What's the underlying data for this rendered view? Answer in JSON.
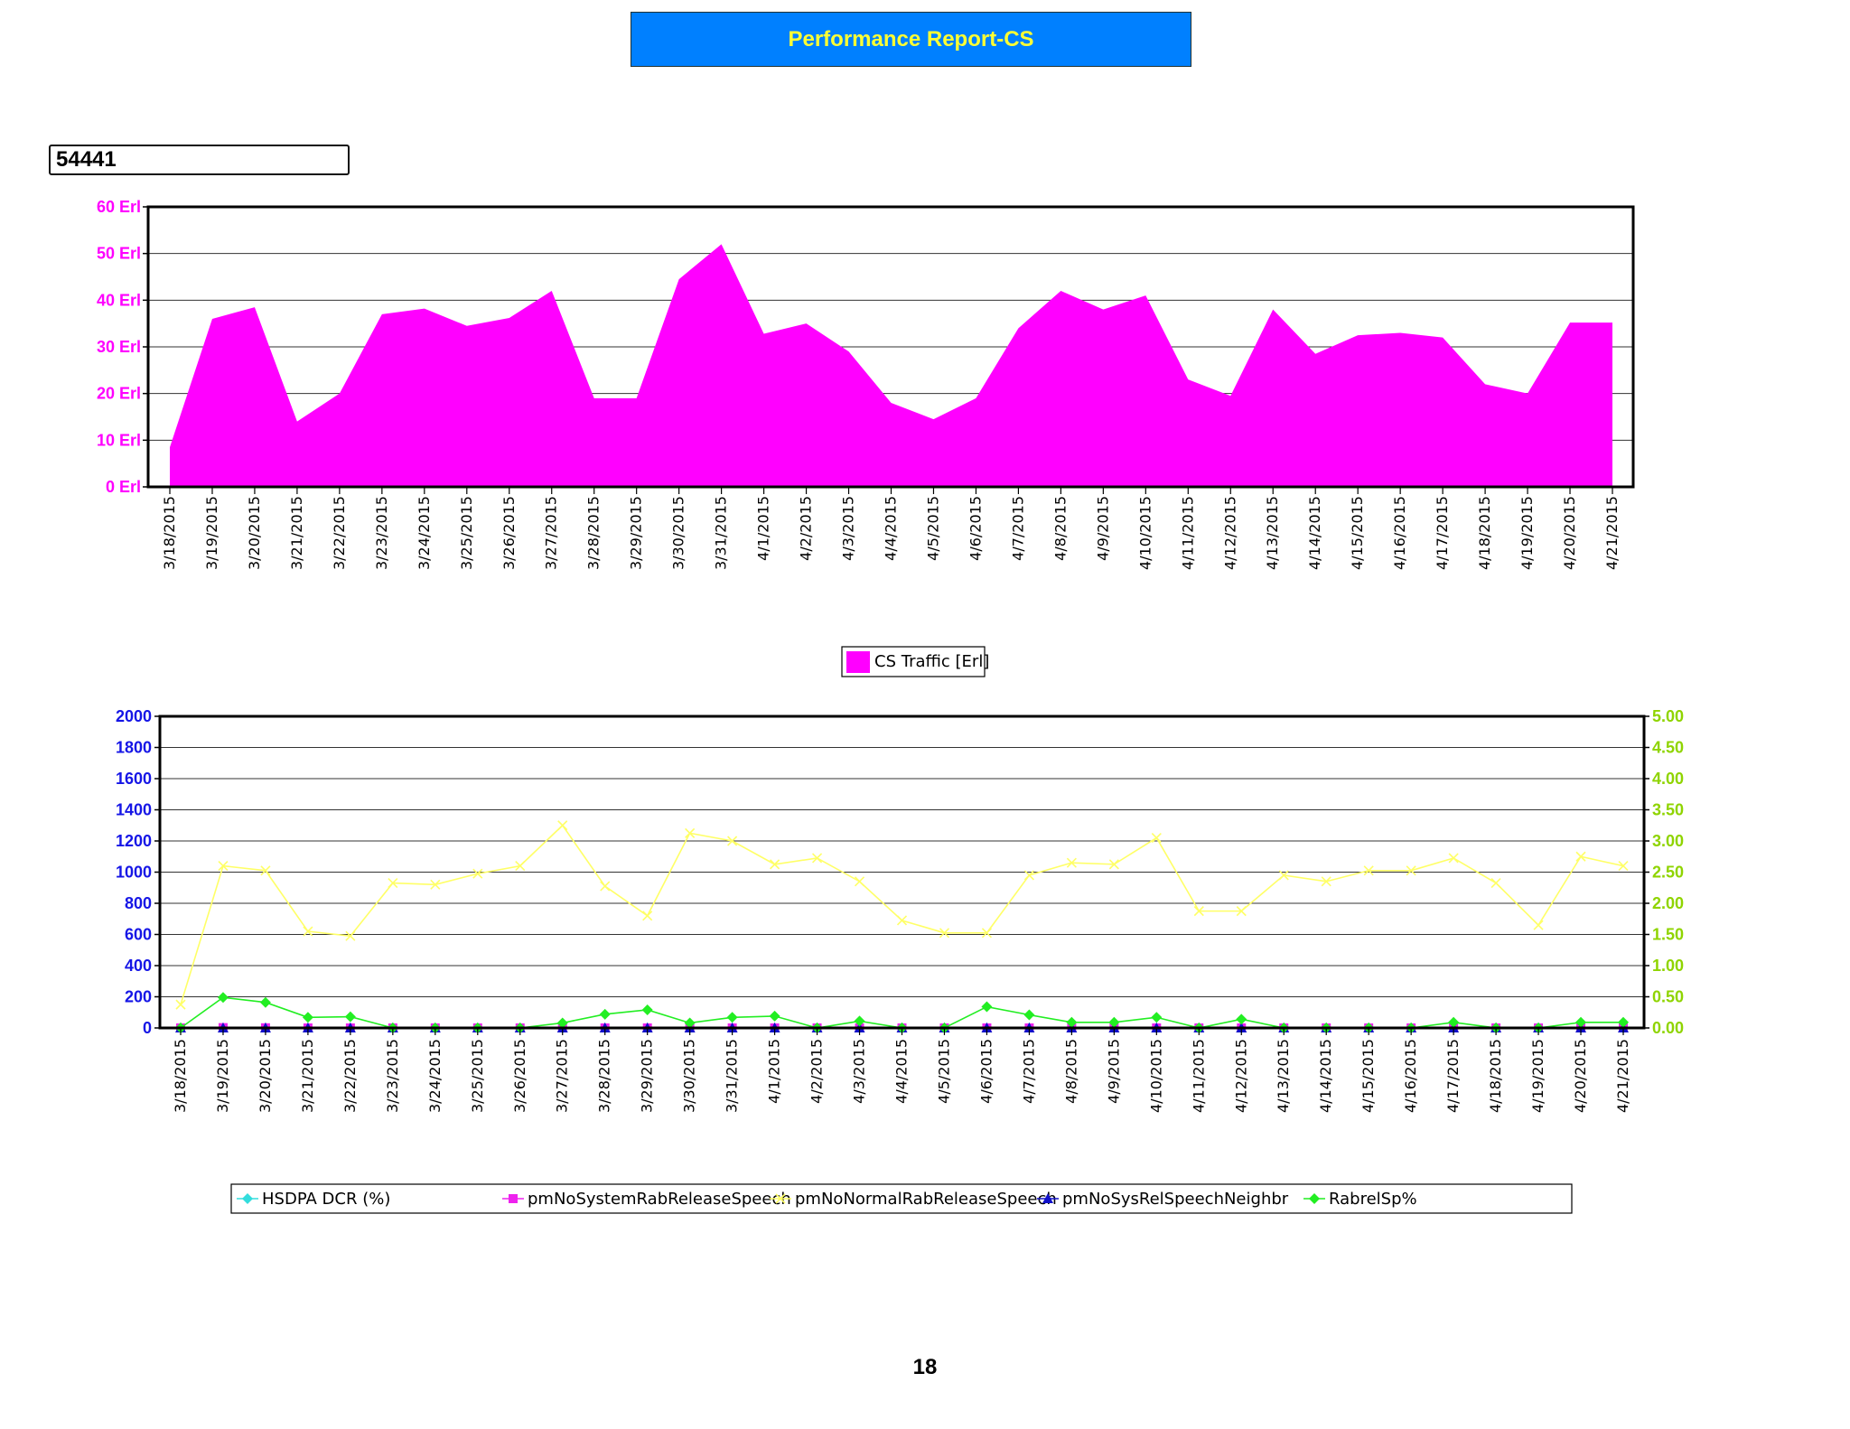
{
  "page": {
    "title": "Performance Report-CS",
    "cell_id": "54441",
    "page_number": "18"
  },
  "colors": {
    "title_bg": "#0080ff",
    "title_text": "#ffff33",
    "traffic": "#ff00ff",
    "left_axis": "#1515e6",
    "right_axis": "#8fd400",
    "hsdpa_dcr": "#33dddd",
    "system_rab": "#ee22ee",
    "normal_rab": "#ffff66",
    "sysrel_neighbr": "#1010c8",
    "rabrelsp": "#22ee22"
  },
  "chart_data": [
    {
      "type": "area",
      "categories": [
        "3/18/2015",
        "3/19/2015",
        "3/20/2015",
        "3/21/2015",
        "3/22/2015",
        "3/23/2015",
        "3/24/2015",
        "3/25/2015",
        "3/26/2015",
        "3/27/2015",
        "3/28/2015",
        "3/29/2015",
        "3/30/2015",
        "3/31/2015",
        "4/1/2015",
        "4/2/2015",
        "4/3/2015",
        "4/4/2015",
        "4/5/2015",
        "4/6/2015",
        "4/7/2015",
        "4/8/2015",
        "4/9/2015",
        "4/10/2015",
        "4/11/2015",
        "4/12/2015",
        "4/13/2015",
        "4/14/2015",
        "4/15/2015",
        "4/16/2015",
        "4/17/2015",
        "4/18/2015",
        "4/19/2015",
        "4/20/2015",
        "4/21/2015"
      ],
      "series": [
        {
          "name": "CS Traffic [Erl]",
          "values": [
            8.5,
            36,
            38.5,
            14,
            20,
            37,
            38.2,
            34.5,
            36.2,
            42,
            19,
            19,
            44.5,
            52,
            32.8,
            35,
            29,
            18,
            14.5,
            19,
            34,
            42,
            38,
            41,
            23,
            19.5,
            38,
            28.5,
            32.5,
            33,
            32,
            22,
            20,
            35.2,
            35.2
          ]
        }
      ],
      "y_ticks": [
        "0 Erl",
        "10 Erl",
        "20 Erl",
        "30 Erl",
        "40 Erl",
        "50 Erl",
        "60 Erl"
      ],
      "ylim": [
        0,
        60
      ],
      "grid": true,
      "legend_position": "bottom"
    },
    {
      "type": "line",
      "categories": [
        "3/18/2015",
        "3/19/2015",
        "3/20/2015",
        "3/21/2015",
        "3/22/2015",
        "3/23/2015",
        "3/24/2015",
        "3/25/2015",
        "3/26/2015",
        "3/27/2015",
        "3/28/2015",
        "3/29/2015",
        "3/30/2015",
        "3/31/2015",
        "4/1/2015",
        "4/2/2015",
        "4/3/2015",
        "4/4/2015",
        "4/5/2015",
        "4/6/2015",
        "4/7/2015",
        "4/8/2015",
        "4/9/2015",
        "4/10/2015",
        "4/11/2015",
        "4/12/2015",
        "4/13/2015",
        "4/14/2015",
        "4/15/2015",
        "4/16/2015",
        "4/17/2015",
        "4/18/2015",
        "4/19/2015",
        "4/20/2015",
        "4/21/2015"
      ],
      "series": [
        {
          "name": "HSDPA DCR (%)",
          "axis": "right",
          "marker": "diamond",
          "values": [
            0,
            0,
            0,
            0,
            0,
            0,
            0,
            0,
            0,
            0,
            0,
            0,
            0,
            0,
            0,
            0,
            0,
            0,
            0,
            0,
            0,
            0,
            0,
            0,
            0,
            0,
            0,
            0,
            0,
            0,
            0,
            0,
            0,
            0,
            0
          ]
        },
        {
          "name": "pmNoSystemRabReleaseSpeech",
          "axis": "left",
          "marker": "square",
          "values": [
            0,
            2,
            1,
            0,
            0,
            0,
            0,
            0,
            0,
            0,
            0,
            0,
            0,
            0,
            0,
            0,
            0,
            0,
            0,
            0,
            0,
            0,
            0,
            0,
            0,
            0,
            0,
            0,
            0,
            0,
            0,
            0,
            0,
            0,
            0
          ]
        },
        {
          "name": "pmNoNormalRabReleaseSpeech",
          "axis": "left",
          "marker": "x",
          "values": [
            150,
            1040,
            1010,
            620,
            590,
            930,
            920,
            990,
            1040,
            1300,
            910,
            720,
            1250,
            1200,
            1050,
            1090,
            940,
            690,
            610,
            610,
            980,
            1060,
            1050,
            1220,
            750,
            750,
            980,
            940,
            1010,
            1010,
            1090,
            930,
            660,
            1100,
            1040
          ]
        },
        {
          "name": "pmNoSysRelSpeechNeighbr",
          "axis": "left",
          "marker": "triangle",
          "values": [
            0,
            0,
            0,
            0,
            0,
            0,
            0,
            0,
            0,
            0,
            0,
            0,
            0,
            0,
            0,
            0,
            0,
            0,
            0,
            0,
            0,
            0,
            0,
            0,
            0,
            0,
            0,
            0,
            0,
            0,
            0,
            0,
            0,
            0,
            0
          ]
        },
        {
          "name": "RabrelSp%",
          "axis": "right",
          "marker": "diamond",
          "values": [
            0,
            0.49,
            0.41,
            0.17,
            0.18,
            0,
            0,
            0,
            0,
            0.08,
            0.22,
            0.29,
            0.08,
            0.17,
            0.19,
            0,
            0.11,
            0,
            0,
            0.34,
            0.21,
            0.09,
            0.09,
            0.17,
            0,
            0.14,
            0,
            0,
            0,
            0,
            0.09,
            0,
            0,
            0.09,
            0.09
          ]
        }
      ],
      "y_left_ticks": [
        "0",
        "200",
        "400",
        "600",
        "800",
        "1000",
        "1200",
        "1400",
        "1600",
        "1800",
        "2000"
      ],
      "y_right_ticks": [
        "0.00",
        "0.50",
        "1.00",
        "1.50",
        "2.00",
        "2.50",
        "3.00",
        "3.50",
        "4.00",
        "4.50",
        "5.00"
      ],
      "ylim": [
        0,
        2000
      ],
      "y2lim": [
        0,
        5
      ],
      "grid": true,
      "legend_position": "bottom"
    }
  ]
}
